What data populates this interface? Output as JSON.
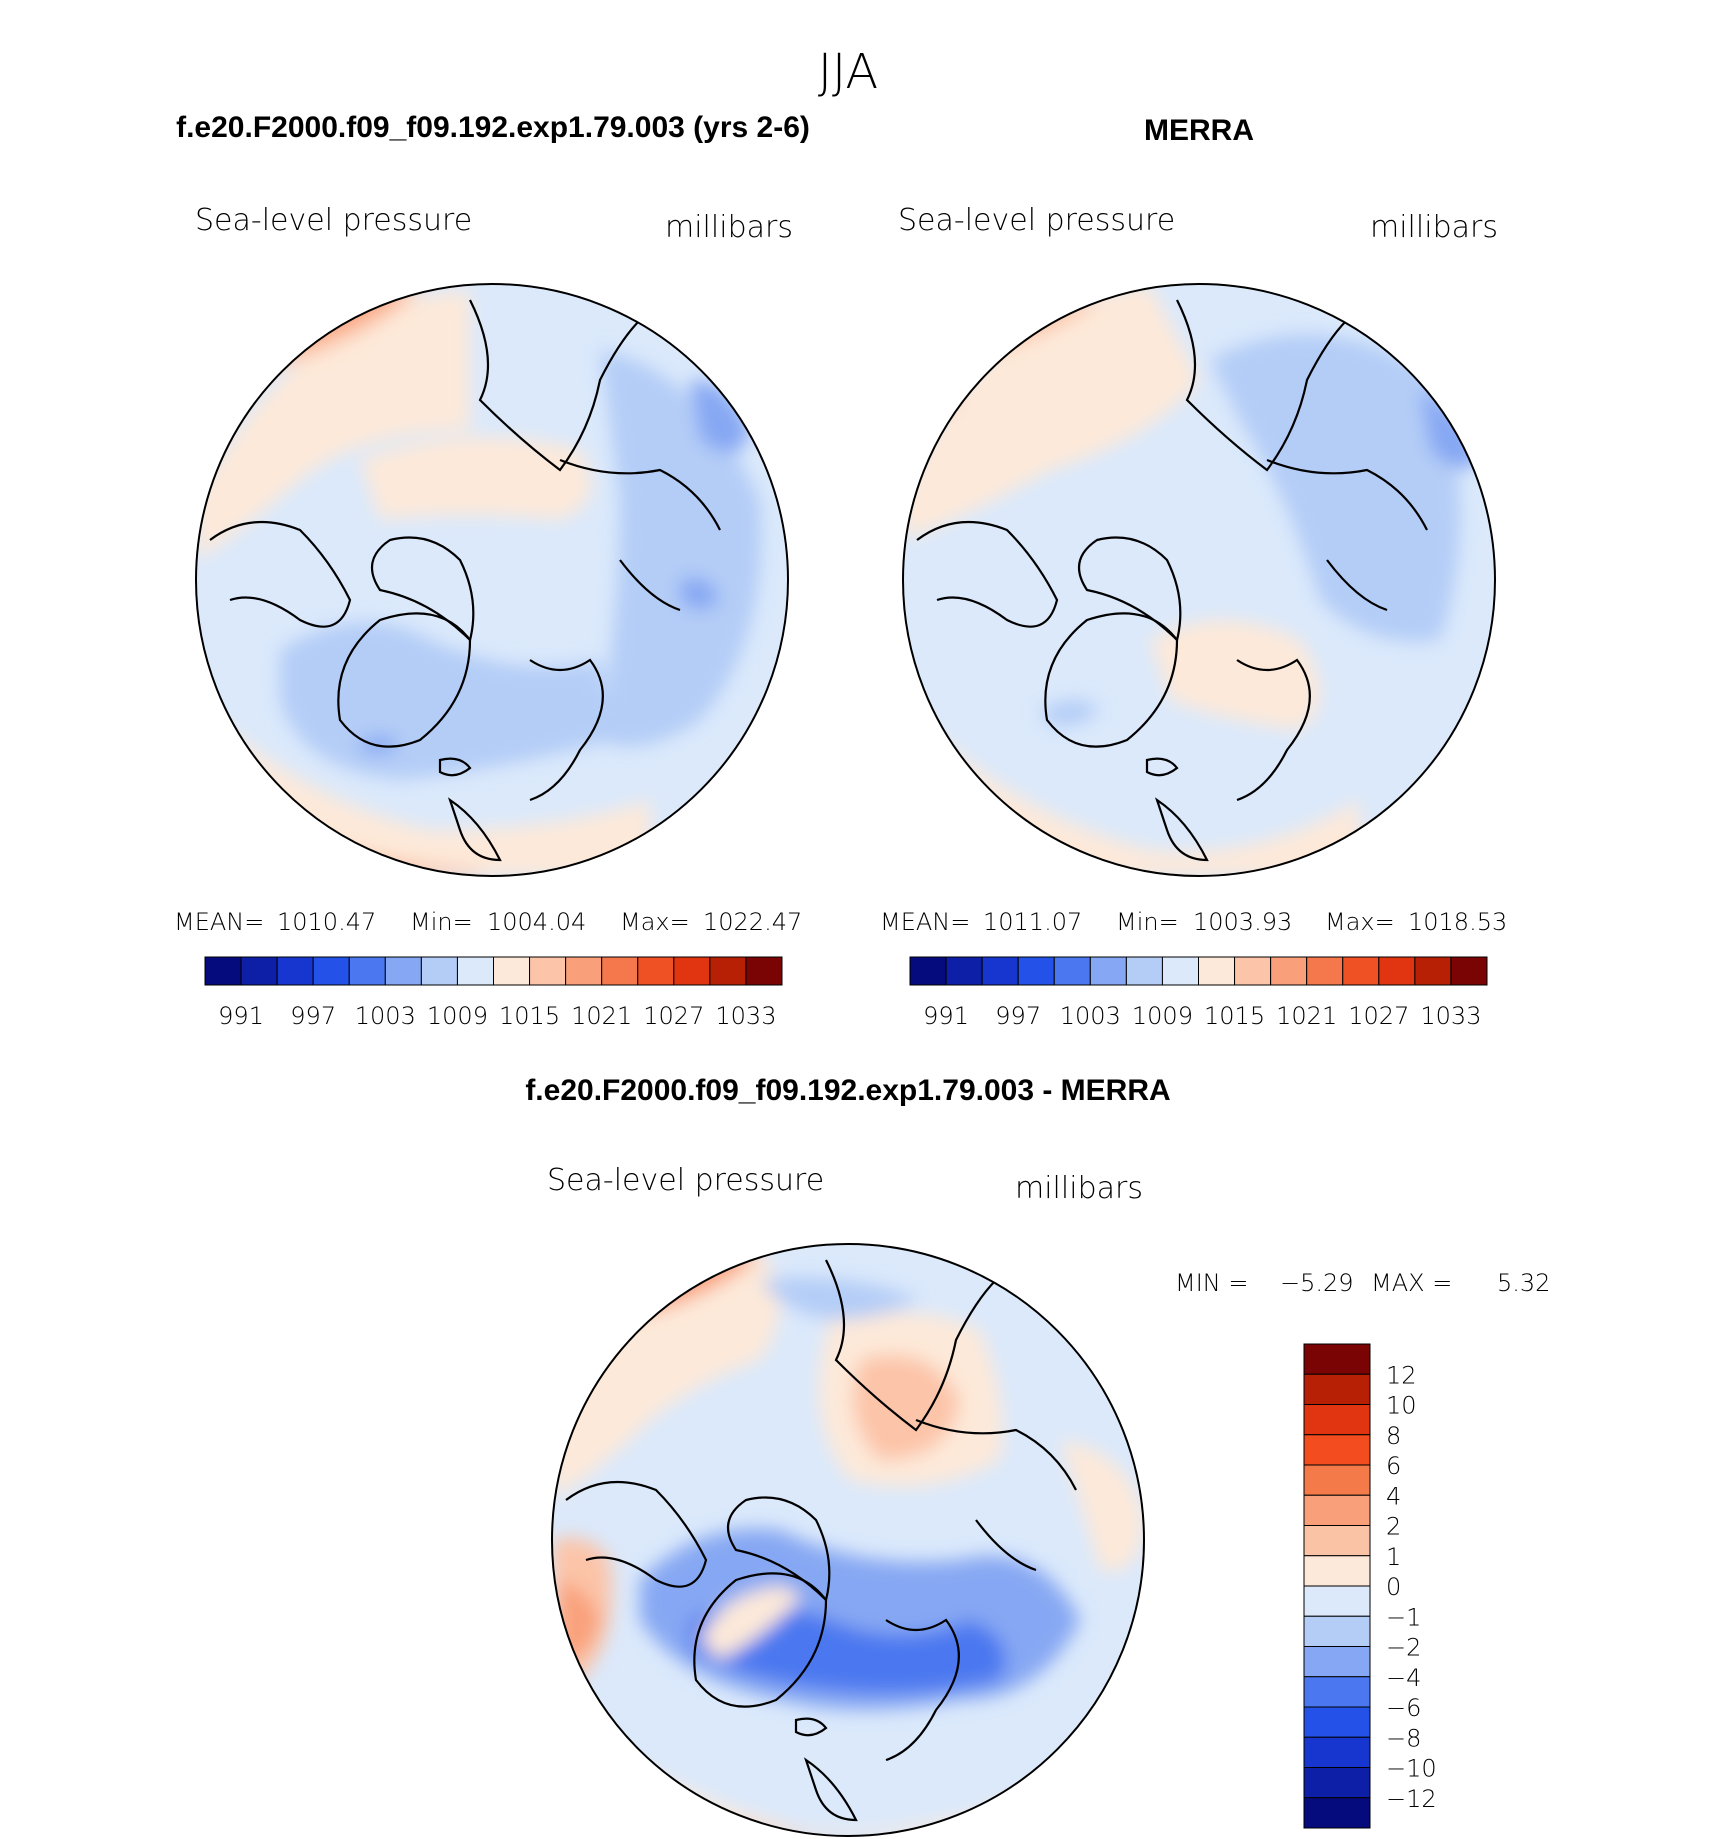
{
  "page_title": "JJA",
  "panel_titles": {
    "model": "f.e20.F2000.f09_f09.192.exp1.79.003 (yrs 2-6)",
    "obs": "MERRA",
    "diff": "f.e20.F2000.f09_f09.192.exp1.79.003 - MERRA"
  },
  "chart_data": [
    {
      "type": "heatmap",
      "title": "f.e20.F2000.f09_f09.192.exp1.79.003 (yrs 2-6)",
      "variable": "Sea-level pressure",
      "units": "millibars",
      "projection": "north-polar stereographic",
      "stats": {
        "mean_label": "MEAN=",
        "mean": "1010.47",
        "min_label": "Min=",
        "min": "1004.04",
        "max_label": "Max=",
        "max": "1022.47"
      },
      "colorbar": {
        "levels": [
          988,
          991,
          994,
          997,
          1000,
          1003,
          1006,
          1009,
          1012,
          1015,
          1018,
          1021,
          1024,
          1027,
          1030,
          1033
        ],
        "tick_labels": [
          "991",
          "997",
          "1003",
          "1009",
          "1015",
          "1021",
          "1027",
          "1033"
        ],
        "colors": [
          "#050a7d",
          "#0c1fa6",
          "#1636cf",
          "#2452e8",
          "#4b78f0",
          "#86a7f3",
          "#b4cdf7",
          "#dbe9fb",
          "#fde9d9",
          "#fcc4a8",
          "#f9a07a",
          "#f4784c",
          "#ef5125",
          "#e03510",
          "#b72004",
          "#7a0303"
        ]
      }
    },
    {
      "type": "heatmap",
      "title": "MERRA",
      "variable": "Sea-level pressure",
      "units": "millibars",
      "projection": "north-polar stereographic",
      "stats": {
        "mean_label": "MEAN=",
        "mean": "1011.07",
        "min_label": "Min=",
        "min": "1003.93",
        "max_label": "Max=",
        "max": "1018.53"
      },
      "colorbar": {
        "levels": [
          988,
          991,
          994,
          997,
          1000,
          1003,
          1006,
          1009,
          1012,
          1015,
          1018,
          1021,
          1024,
          1027,
          1030,
          1033
        ],
        "tick_labels": [
          "991",
          "997",
          "1003",
          "1009",
          "1015",
          "1021",
          "1027",
          "1033"
        ],
        "colors": [
          "#050a7d",
          "#0c1fa6",
          "#1636cf",
          "#2452e8",
          "#4b78f0",
          "#86a7f3",
          "#b4cdf7",
          "#dbe9fb",
          "#fde9d9",
          "#fcc4a8",
          "#f9a07a",
          "#f4784c",
          "#ef5125",
          "#e03510",
          "#b72004",
          "#7a0303"
        ]
      }
    },
    {
      "type": "heatmap",
      "title": "f.e20.F2000.f09_f09.192.exp1.79.003 - MERRA",
      "variable": "Sea-level pressure",
      "units": "millibars",
      "projection": "north-polar stereographic",
      "stats": {
        "min_label": "MIN =",
        "min": "−5.29",
        "max_label": "MAX =",
        "max": "5.32"
      },
      "colorbar": {
        "orientation": "vertical",
        "levels": [
          12,
          10,
          8,
          6,
          4,
          2,
          1,
          0,
          -1,
          -2,
          -4,
          -6,
          -8,
          -10,
          -12
        ],
        "tick_labels": [
          "12",
          "10",
          "8",
          "6",
          "4",
          "2",
          "1",
          "0",
          "−1",
          "−2",
          "−4",
          "−6",
          "−8",
          "−10",
          "−12"
        ],
        "colors": [
          "#7a0303",
          "#b72004",
          "#e03510",
          "#f24c1f",
          "#f47a4a",
          "#f9a07a",
          "#fbc3a6",
          "#fde9d9",
          "#dbe9fb",
          "#b4cdf7",
          "#86a7f3",
          "#4b78f0",
          "#2452e8",
          "#1636cf",
          "#0c1fa6",
          "#050a7d"
        ]
      }
    }
  ]
}
